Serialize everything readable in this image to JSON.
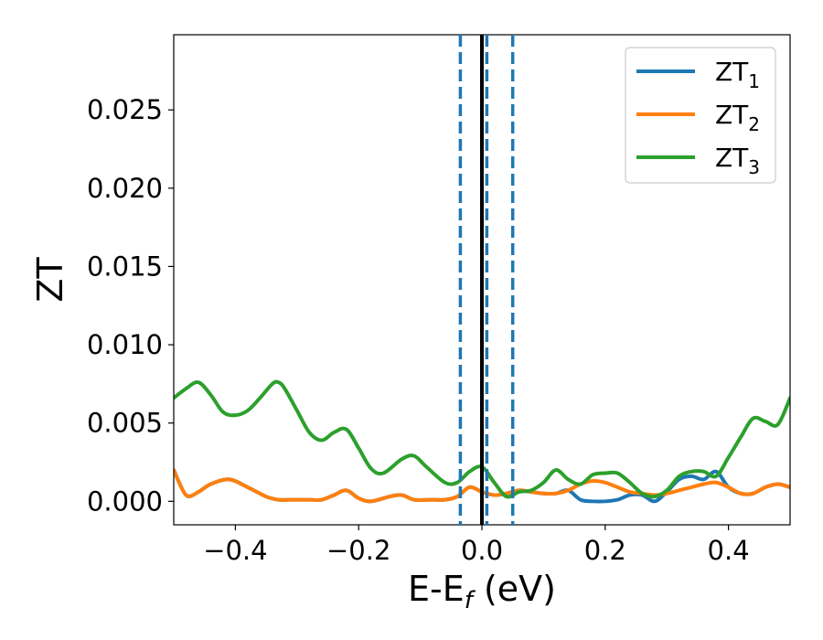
{
  "chart_data": {
    "type": "line",
    "xlabel": "E-E",
    "xlabel_sub": "f",
    "xlabel_suffix": " (eV)",
    "ylabel": "ZT",
    "xlim": [
      -0.5,
      0.5
    ],
    "ylim": [
      -0.0015,
      0.0298
    ],
    "xticks": [
      -0.4,
      -0.2,
      0.0,
      0.2,
      0.4
    ],
    "xtick_labels": [
      "−0.4",
      "−0.2",
      "0.0",
      "0.2",
      "0.4"
    ],
    "yticks": [
      0.0,
      0.005,
      0.01,
      0.015,
      0.02,
      0.025
    ],
    "ytick_labels": [
      "0.000",
      "0.005",
      "0.010",
      "0.015",
      "0.020",
      "0.025"
    ],
    "grid": false,
    "legend_position": "top-right",
    "vlines": [
      {
        "x": 0.0,
        "style": "solid",
        "color": "#000000"
      },
      {
        "x": -0.035,
        "style": "dashed",
        "color": "#1f77b4"
      },
      {
        "x": 0.008,
        "style": "dashed",
        "color": "#1f77b4"
      },
      {
        "x": 0.05,
        "style": "dashed",
        "color": "#1f77b4"
      }
    ],
    "series": [
      {
        "name": "ZT",
        "sub": "1",
        "color": "#1f77b4",
        "x": [
          -0.5,
          -0.48,
          -0.46,
          -0.44,
          -0.41,
          -0.38,
          -0.35,
          -0.33,
          -0.31,
          -0.28,
          -0.26,
          -0.24,
          -0.22,
          -0.2,
          -0.18,
          -0.15,
          -0.13,
          -0.11,
          -0.08,
          -0.06,
          -0.04,
          -0.02,
          0.0,
          0.02,
          0.04,
          0.06,
          0.08,
          0.1,
          0.12,
          0.14,
          0.16,
          0.18,
          0.2,
          0.22,
          0.24,
          0.26,
          0.28,
          0.3,
          0.32,
          0.34,
          0.36,
          0.38,
          0.4,
          0.42,
          0.44,
          0.46,
          0.48,
          0.5
        ],
        "y": [
          0.002,
          0.0004,
          0.0006,
          0.0011,
          0.0014,
          0.0009,
          0.0003,
          0.0001,
          0.0001,
          0.0001,
          0.0001,
          0.0004,
          0.0007,
          0.0002,
          0.0,
          0.0003,
          0.0004,
          0.0001,
          0.0001,
          0.0001,
          0.0003,
          0.0009,
          0.0006,
          0.0004,
          0.0005,
          0.0007,
          0.0006,
          0.0005,
          0.0005,
          0.0007,
          0.0001,
          0.0,
          0.0,
          0.0001,
          0.0004,
          0.0004,
          0.0,
          0.0006,
          0.0014,
          0.0016,
          0.0014,
          0.0019,
          0.0009,
          0.0005,
          0.0005,
          0.0009,
          0.0011,
          0.0009
        ]
      },
      {
        "name": "ZT",
        "sub": "2",
        "color": "#ff7f0e",
        "x": [
          -0.5,
          -0.48,
          -0.46,
          -0.44,
          -0.41,
          -0.38,
          -0.35,
          -0.33,
          -0.31,
          -0.28,
          -0.26,
          -0.24,
          -0.22,
          -0.2,
          -0.18,
          -0.15,
          -0.13,
          -0.11,
          -0.08,
          -0.06,
          -0.04,
          -0.02,
          0.0,
          0.02,
          0.04,
          0.06,
          0.08,
          0.1,
          0.12,
          0.14,
          0.16,
          0.18,
          0.2,
          0.22,
          0.24,
          0.26,
          0.28,
          0.3,
          0.32,
          0.34,
          0.36,
          0.38,
          0.4,
          0.42,
          0.44,
          0.46,
          0.48,
          0.5
        ],
        "y": [
          0.002,
          0.0004,
          0.0006,
          0.0011,
          0.0014,
          0.0009,
          0.0003,
          0.0001,
          0.0001,
          0.0001,
          0.0001,
          0.0004,
          0.0007,
          0.0002,
          0.0,
          0.0003,
          0.0004,
          0.0001,
          0.0001,
          0.0001,
          0.0003,
          0.0009,
          0.0006,
          0.0004,
          0.0005,
          0.0007,
          0.0006,
          0.0005,
          0.0005,
          0.0007,
          0.0011,
          0.0013,
          0.0012,
          0.0009,
          0.0006,
          0.0005,
          0.0004,
          0.0005,
          0.0007,
          0.0009,
          0.0011,
          0.0012,
          0.0009,
          0.0005,
          0.0005,
          0.0009,
          0.0011,
          0.0009
        ]
      },
      {
        "name": "ZT",
        "sub": "3",
        "color": "#2ca02c",
        "x": [
          -0.5,
          -0.48,
          -0.46,
          -0.44,
          -0.42,
          -0.4,
          -0.38,
          -0.36,
          -0.34,
          -0.33,
          -0.32,
          -0.3,
          -0.28,
          -0.26,
          -0.24,
          -0.22,
          -0.2,
          -0.18,
          -0.16,
          -0.13,
          -0.11,
          -0.09,
          -0.06,
          -0.04,
          -0.02,
          0.0,
          0.02,
          0.04,
          0.06,
          0.08,
          0.1,
          0.12,
          0.14,
          0.16,
          0.18,
          0.2,
          0.22,
          0.24,
          0.26,
          0.28,
          0.3,
          0.32,
          0.34,
          0.36,
          0.38,
          0.4,
          0.42,
          0.44,
          0.46,
          0.48,
          0.5
        ],
        "y": [
          0.0066,
          0.0072,
          0.0076,
          0.0068,
          0.0057,
          0.0055,
          0.0058,
          0.0066,
          0.0075,
          0.0076,
          0.0072,
          0.0058,
          0.0044,
          0.0039,
          0.0044,
          0.0046,
          0.0034,
          0.0021,
          0.0018,
          0.0027,
          0.0029,
          0.0022,
          0.0012,
          0.0012,
          0.0019,
          0.0022,
          0.0012,
          0.0003,
          0.0006,
          0.0007,
          0.0012,
          0.002,
          0.0014,
          0.0011,
          0.0017,
          0.0018,
          0.0018,
          0.0012,
          0.0005,
          0.0003,
          0.0007,
          0.0016,
          0.0019,
          0.0019,
          0.0016,
          0.0028,
          0.0041,
          0.0053,
          0.0051,
          0.0049,
          0.0066
        ]
      }
    ]
  }
}
